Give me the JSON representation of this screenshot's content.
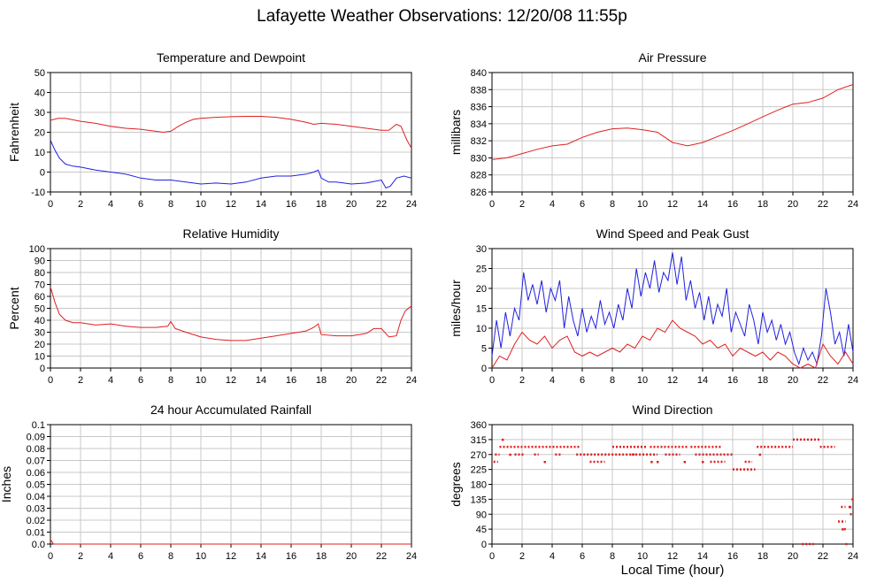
{
  "page": {
    "title": "Lafayette Weather Observations: 12/20/08 11:55p",
    "xaxis_title": "Local Time (hour)"
  },
  "colors": {
    "red": "#e02020",
    "blue": "#2020e0",
    "grid": "#c8c8c8"
  },
  "chart_data": [
    {
      "id": "temp",
      "type": "line",
      "title": "Temperature and Dewpoint",
      "ylabel": "Fahrenheit",
      "xlim": [
        0,
        24
      ],
      "ylim": [
        -10,
        50
      ],
      "xticks": [
        0,
        2,
        4,
        6,
        8,
        10,
        12,
        14,
        16,
        18,
        20,
        22,
        24
      ],
      "yticks": [
        -10,
        0,
        10,
        20,
        30,
        40,
        50
      ],
      "grid": true,
      "series": [
        {
          "color": "red",
          "x": [
            0,
            0.5,
            1,
            2,
            3,
            4,
            5,
            6,
            7,
            7.5,
            8,
            8.5,
            9,
            9.5,
            10,
            11,
            12,
            13,
            14,
            15,
            16,
            17,
            17.5,
            18,
            19,
            20,
            21,
            22,
            22.5,
            23,
            23.3,
            23.7,
            24
          ],
          "y": [
            26,
            27,
            27,
            25.5,
            24.5,
            23,
            22,
            21.5,
            20.5,
            20,
            20.5,
            23,
            25,
            26.5,
            27,
            27.5,
            27.8,
            28,
            28,
            27.5,
            26.5,
            25,
            24,
            24.5,
            24,
            23,
            22,
            21,
            21,
            24,
            23,
            16,
            12
          ]
        },
        {
          "color": "blue",
          "x": [
            0,
            0.3,
            0.6,
            1,
            1.5,
            2,
            3,
            4,
            5,
            6,
            7,
            8,
            9,
            10,
            11,
            12,
            13,
            14,
            15,
            16,
            17,
            17.5,
            17.8,
            18,
            18.5,
            19,
            20,
            21,
            22,
            22.3,
            22.6,
            23,
            23.5,
            24
          ],
          "y": [
            16,
            11,
            7,
            4,
            3,
            2.5,
            1,
            0,
            -1,
            -3,
            -4,
            -4,
            -5,
            -6,
            -5.5,
            -6,
            -5,
            -3,
            -2,
            -2,
            -1,
            0,
            1,
            -3,
            -5,
            -5,
            -6,
            -5.5,
            -4,
            -8,
            -7,
            -3,
            -2,
            -3
          ]
        }
      ]
    },
    {
      "id": "pressure",
      "type": "line",
      "title": "Air Pressure",
      "ylabel": "millibars",
      "xlim": [
        0,
        24
      ],
      "ylim": [
        826,
        840
      ],
      "xticks": [
        0,
        2,
        4,
        6,
        8,
        10,
        12,
        14,
        16,
        18,
        20,
        22,
        24
      ],
      "yticks": [
        826,
        828,
        830,
        832,
        834,
        836,
        838,
        840
      ],
      "grid": true,
      "series": [
        {
          "color": "red",
          "x": [
            0,
            1,
            2,
            3,
            4,
            5,
            6,
            7,
            8,
            9,
            10,
            11,
            12,
            13,
            14,
            15,
            16,
            17,
            18,
            19,
            20,
            21,
            22,
            23,
            24
          ],
          "y": [
            829.8,
            830,
            830.5,
            831,
            831.4,
            831.6,
            832.4,
            833,
            833.4,
            833.5,
            833.3,
            833,
            831.8,
            831.4,
            831.8,
            832.5,
            833.2,
            834,
            834.8,
            835.6,
            836.3,
            836.5,
            837,
            838,
            838.6
          ]
        }
      ]
    },
    {
      "id": "humidity",
      "type": "line",
      "title": "Relative Humidity",
      "ylabel": "Percent",
      "xlim": [
        0,
        24
      ],
      "ylim": [
        0,
        100
      ],
      "xticks": [
        0,
        2,
        4,
        6,
        8,
        10,
        12,
        14,
        16,
        18,
        20,
        22,
        24
      ],
      "yticks": [
        0,
        10,
        20,
        30,
        40,
        50,
        60,
        70,
        80,
        90,
        100
      ],
      "grid": true,
      "series": [
        {
          "color": "red",
          "x": [
            0,
            0.3,
            0.6,
            1,
            1.5,
            2,
            3,
            4,
            5,
            6,
            7,
            7.8,
            8,
            8.3,
            9,
            10,
            11,
            12,
            13,
            14,
            15,
            16,
            17,
            17.5,
            17.8,
            18,
            19,
            20,
            21,
            21.5,
            22,
            22.5,
            23,
            23.3,
            23.6,
            24
          ],
          "y": [
            68,
            55,
            45,
            40,
            38,
            38,
            36,
            37,
            35,
            34,
            34,
            35,
            39,
            33,
            30,
            26,
            24,
            23,
            23,
            25,
            27,
            29,
            31,
            34,
            37,
            28,
            27,
            27,
            29,
            33,
            33,
            26,
            27,
            40,
            48,
            52
          ]
        }
      ]
    },
    {
      "id": "wind",
      "type": "line",
      "title": "Wind Speed and Peak Gust",
      "ylabel": "miles/hour",
      "xlim": [
        0,
        24
      ],
      "ylim": [
        0,
        30
      ],
      "xticks": [
        0,
        2,
        4,
        6,
        8,
        10,
        12,
        14,
        16,
        18,
        20,
        22,
        24
      ],
      "yticks": [
        0,
        5,
        10,
        15,
        20,
        25,
        30
      ],
      "grid": true,
      "series": [
        {
          "color": "blue",
          "x": [
            0,
            0.3,
            0.6,
            0.9,
            1.2,
            1.5,
            1.8,
            2.1,
            2.4,
            2.7,
            3,
            3.3,
            3.6,
            3.9,
            4.2,
            4.5,
            4.8,
            5.1,
            5.4,
            5.7,
            6,
            6.3,
            6.6,
            6.9,
            7.2,
            7.5,
            7.8,
            8.1,
            8.4,
            8.7,
            9,
            9.3,
            9.6,
            9.9,
            10.2,
            10.5,
            10.8,
            11.1,
            11.4,
            11.7,
            12,
            12.3,
            12.6,
            12.9,
            13.2,
            13.5,
            13.8,
            14.1,
            14.4,
            14.7,
            15,
            15.3,
            15.6,
            15.9,
            16.2,
            16.5,
            16.8,
            17.1,
            17.4,
            17.7,
            18,
            18.3,
            18.6,
            18.9,
            19.2,
            19.5,
            19.8,
            20.1,
            20.4,
            20.7,
            21,
            21.3,
            21.6,
            21.9,
            22.2,
            22.5,
            22.8,
            23.1,
            23.4,
            23.7,
            24
          ],
          "y": [
            3,
            12,
            5,
            14,
            8,
            15,
            12,
            24,
            17,
            21,
            16,
            22,
            14,
            20,
            17,
            22,
            10,
            18,
            12,
            8,
            15,
            9,
            13,
            10,
            17,
            11,
            14,
            10,
            16,
            12,
            20,
            15,
            25,
            18,
            24,
            20,
            27,
            19,
            24,
            22,
            29,
            21,
            28,
            17,
            22,
            15,
            19,
            12,
            18,
            11,
            16,
            13,
            20,
            9,
            14,
            11,
            8,
            16,
            12,
            6,
            14,
            9,
            12,
            7,
            11,
            6,
            9,
            4,
            1,
            5,
            2,
            4,
            1,
            8,
            20,
            14,
            6,
            9,
            3,
            11,
            4
          ]
        },
        {
          "color": "red",
          "x": [
            0,
            0.5,
            1,
            1.5,
            2,
            2.5,
            3,
            3.5,
            4,
            4.5,
            5,
            5.5,
            6,
            6.5,
            7,
            7.5,
            8,
            8.5,
            9,
            9.5,
            10,
            10.5,
            11,
            11.5,
            12,
            12.5,
            13,
            13.5,
            14,
            14.5,
            15,
            15.5,
            16,
            16.5,
            17,
            17.5,
            18,
            18.5,
            19,
            19.5,
            20,
            20.5,
            21,
            21.5,
            22,
            22.5,
            23,
            23.5,
            24
          ],
          "y": [
            0,
            3,
            2,
            6,
            9,
            7,
            6,
            8,
            5,
            7,
            8,
            4,
            3,
            4,
            3,
            4,
            5,
            4,
            6,
            5,
            8,
            7,
            10,
            9,
            12,
            10,
            9,
            8,
            6,
            7,
            5,
            6,
            3,
            5,
            4,
            3,
            4,
            2,
            4,
            3,
            1,
            0,
            1,
            0,
            6,
            3,
            1,
            4,
            1
          ]
        }
      ]
    },
    {
      "id": "rain",
      "type": "line",
      "title": "24 hour Accumulated Rainfall",
      "ylabel": "Inches",
      "xlim": [
        0,
        24
      ],
      "ylim": [
        0,
        0.1
      ],
      "xticks": [
        0,
        2,
        4,
        6,
        8,
        10,
        12,
        14,
        16,
        18,
        20,
        22,
        24
      ],
      "yticks": [
        0.0,
        0.01,
        0.02,
        0.03,
        0.04,
        0.05,
        0.06,
        0.07,
        0.08,
        0.09,
        0.1
      ],
      "yticklabels": [
        "0.0",
        "0.01",
        "0.02",
        "0.03",
        "0.04",
        "0.05",
        "0.06",
        "0.07",
        "0.08",
        "0.09",
        "0.1"
      ],
      "grid": true,
      "series": [
        {
          "color": "red",
          "x": [
            0,
            0.1,
            0.2,
            24
          ],
          "y": [
            0.004,
            0.002,
            0,
            0
          ]
        }
      ]
    },
    {
      "id": "winddir",
      "type": "scatter",
      "title": "Wind Direction",
      "ylabel": "degrees",
      "xlim": [
        0,
        24
      ],
      "ylim": [
        0,
        360
      ],
      "xticks": [
        0,
        2,
        4,
        6,
        8,
        10,
        12,
        14,
        16,
        18,
        20,
        22,
        24
      ],
      "yticks": [
        0,
        45,
        90,
        135,
        180,
        225,
        270,
        315,
        360
      ],
      "grid": true,
      "series": [
        {
          "color": "red",
          "segments": [
            {
              "x0": 0.1,
              "x1": 0.4,
              "y": 248
            },
            {
              "x0": 0.2,
              "x1": 0.5,
              "y": 270
            },
            {
              "x0": 0.5,
              "x1": 5.8,
              "y": 293
            },
            {
              "x0": 1.5,
              "x1": 2.2,
              "y": 270
            },
            {
              "x0": 2.8,
              "x1": 3.1,
              "y": 270
            },
            {
              "x0": 4.2,
              "x1": 4.6,
              "y": 270
            },
            {
              "x0": 5.6,
              "x1": 9.5,
              "y": 270
            },
            {
              "x0": 6.5,
              "x1": 7.5,
              "y": 248
            },
            {
              "x0": 8.0,
              "x1": 10.3,
              "y": 293
            },
            {
              "x0": 9.3,
              "x1": 11.0,
              "y": 270
            },
            {
              "x0": 10.5,
              "x1": 13.0,
              "y": 293
            },
            {
              "x0": 11.5,
              "x1": 12.5,
              "y": 270
            },
            {
              "x0": 13.2,
              "x1": 15.2,
              "y": 293
            },
            {
              "x0": 13.5,
              "x1": 16.0,
              "y": 270
            },
            {
              "x0": 14.5,
              "x1": 15.5,
              "y": 248
            },
            {
              "x0": 16.0,
              "x1": 17.5,
              "y": 225
            },
            {
              "x0": 16.8,
              "x1": 17.3,
              "y": 248
            },
            {
              "x0": 17.6,
              "x1": 20.0,
              "y": 293
            },
            {
              "x0": 20.0,
              "x1": 21.8,
              "y": 315
            },
            {
              "x0": 20.6,
              "x1": 21.4,
              "y": 0
            },
            {
              "x0": 21.8,
              "x1": 22.8,
              "y": 293
            },
            {
              "x0": 23.0,
              "x1": 23.5,
              "y": 68
            },
            {
              "x0": 23.2,
              "x1": 23.5,
              "y": 112
            },
            {
              "x0": 23.4,
              "x1": 23.6,
              "y": 45
            },
            {
              "x0": 23.5,
              "x1": 23.7,
              "y": 0
            },
            {
              "x0": 23.7,
              "x1": 23.9,
              "y": 112
            },
            {
              "x0": 23.8,
              "x1": 23.95,
              "y": 90
            },
            {
              "x0": 23.9,
              "x1": 24.0,
              "y": 135
            }
          ],
          "dots": [
            {
              "x": 0.7,
              "y": 315
            },
            {
              "x": 1.2,
              "y": 270
            },
            {
              "x": 3.5,
              "y": 248
            },
            {
              "x": 10.6,
              "y": 248
            },
            {
              "x": 11.0,
              "y": 248
            },
            {
              "x": 12.8,
              "y": 248
            },
            {
              "x": 14.0,
              "y": 248
            },
            {
              "x": 17.8,
              "y": 270
            },
            {
              "x": 23.3,
              "y": 45
            },
            {
              "x": 23.8,
              "y": 112
            }
          ]
        }
      ]
    }
  ]
}
